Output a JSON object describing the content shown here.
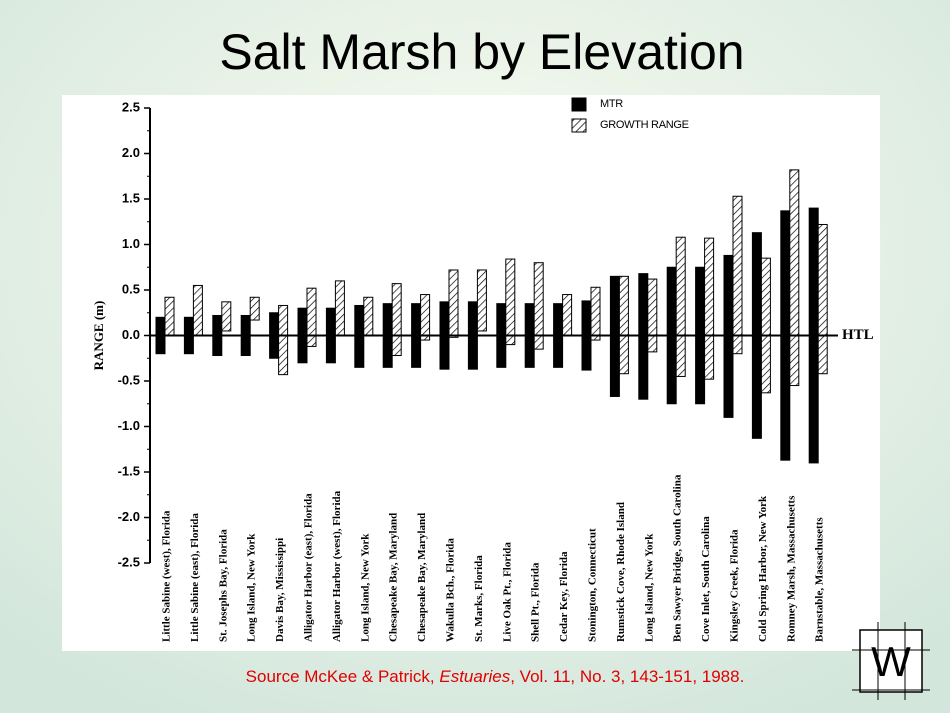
{
  "page_title": "Salt Marsh by Elevation",
  "source": {
    "before": "Source McKee & Patrick, ",
    "journal": "Estuaries",
    "after": ", Vol. 11, No. 3, 143-151, 1988."
  },
  "logo": "W",
  "chart_data": {
    "type": "floating-bar",
    "ylabel": "RANGE (m)",
    "baseline_label": "HTL",
    "categories": [
      "Little Sabine (west), Florida",
      "Little Sabine (east), Florida",
      "St. Josephs Bay, Florida",
      "Long Island, New York",
      "Davis Bay, Mississippi",
      "Alligator Harbor (east), Florida",
      "Alligator Harbor (west), Florida",
      "Long Island, New York",
      "Chesapeake Bay, Maryland",
      "Chesapeake Bay, Maryland",
      "Wakulla Bch., Florida",
      "St. Marks, Florida",
      "Live Oak Pt., Florida",
      "Shell Pt., Florida",
      "Cedar Key, Florida",
      "Stonington, Connecticut",
      "Rumstick Cove, Rhode Island",
      "Long Island, New York",
      "Ben Sawyer Bridge, South Carolina",
      "Cove Inlet, South Carolina",
      "Kingsley Creek, Florida",
      "Cold Spring Harbor, New York",
      "Romney Marsh, Massachusetts",
      "Barnstable, Massachusetts"
    ],
    "series": [
      {
        "name": "MTR",
        "color": "#000000",
        "pattern": "solid",
        "low": [
          -0.2,
          -0.2,
          -0.22,
          -0.22,
          -0.25,
          -0.3,
          -0.3,
          -0.35,
          -0.35,
          -0.35,
          -0.37,
          -0.37,
          -0.35,
          -0.35,
          -0.35,
          -0.38,
          -0.67,
          -0.7,
          -0.75,
          -0.75,
          -0.9,
          -1.13,
          -1.37,
          -1.4
        ],
        "high": [
          0.2,
          0.2,
          0.22,
          0.22,
          0.25,
          0.3,
          0.3,
          0.33,
          0.35,
          0.35,
          0.37,
          0.37,
          0.35,
          0.35,
          0.35,
          0.38,
          0.65,
          0.68,
          0.75,
          0.75,
          0.88,
          1.13,
          1.37,
          1.4
        ]
      },
      {
        "name": "GROWTH RANGE",
        "color": "#000000",
        "pattern": "hatch",
        "low": [
          0.0,
          0.0,
          0.05,
          0.17,
          -0.43,
          -0.12,
          0.0,
          0.0,
          -0.22,
          -0.05,
          -0.02,
          0.05,
          -0.1,
          -0.15,
          0.0,
          -0.05,
          -0.42,
          -0.18,
          -0.45,
          -0.48,
          -0.2,
          -0.63,
          -0.55,
          -0.42
        ],
        "high": [
          0.42,
          0.55,
          0.37,
          0.42,
          0.33,
          0.52,
          0.6,
          0.42,
          0.57,
          0.45,
          0.72,
          0.72,
          0.84,
          0.8,
          0.45,
          0.53,
          0.65,
          0.62,
          1.08,
          1.07,
          1.53,
          0.85,
          1.82,
          1.22
        ]
      }
    ],
    "ylim": [
      -2.5,
      2.5
    ],
    "yticks": [
      2.5,
      {
        "value": 2,
        "label": "2.0"
      },
      1.5,
      {
        "value": 1,
        "label": "1.0"
      },
      0.5,
      {
        "value": 0,
        "label": "0.0"
      },
      -0.5,
      {
        "value": -1,
        "label": "-1.0"
      },
      -1.5,
      {
        "value": -2,
        "label": "-2.0"
      },
      -2.5
    ],
    "legend": "top-right"
  }
}
